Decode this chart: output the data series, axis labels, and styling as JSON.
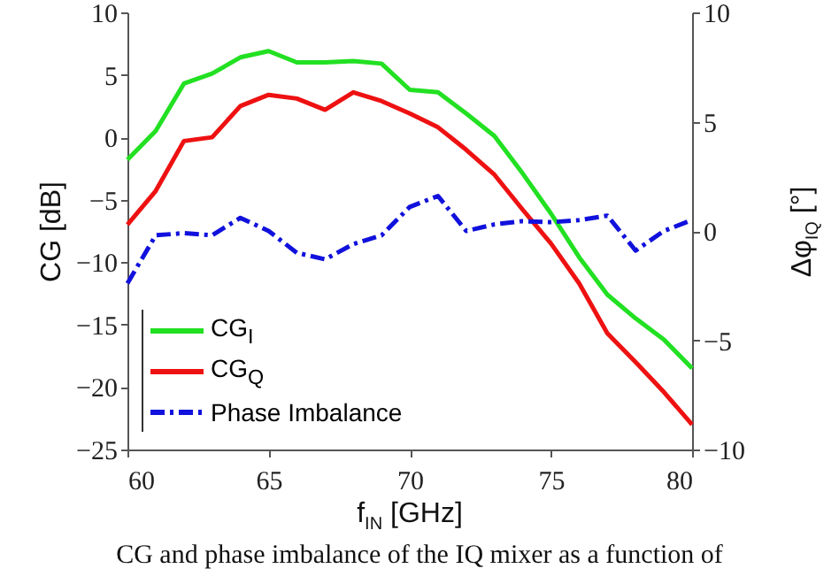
{
  "chart_data": {
    "type": "line",
    "xlabel": "f$_{IN}$ [GHz]",
    "ylabel": "CG [dB]",
    "y2label": "Δφ$_{IQ}$ [°]",
    "x": [
      60,
      61,
      62,
      63,
      64,
      65,
      66,
      67,
      68,
      69,
      70,
      71,
      72,
      73,
      74,
      75,
      76,
      77,
      78,
      79,
      80
    ],
    "series": [
      {
        "name": "CG$_{I}$",
        "color": "#22e022",
        "line_style": "solid",
        "values": [
          -1.8,
          0.5,
          4.3,
          5.1,
          6.4,
          6.9,
          6.0,
          6.0,
          6.1,
          5.9,
          3.8,
          3.6,
          1.9,
          0.1,
          -2.9,
          -6.1,
          -9.6,
          -12.6,
          -14.5,
          -16.2,
          -18.5
        ]
      },
      {
        "name": "CG$_{Q}$",
        "color": "#ee1111",
        "line_style": "solid",
        "values": [
          -7.0,
          -4.3,
          -0.3,
          0.0,
          2.5,
          3.4,
          3.1,
          2.2,
          3.6,
          2.9,
          1.9,
          0.8,
          -1.0,
          -3.0,
          -5.8,
          -8.5,
          -11.7,
          -15.7,
          -18.0,
          -20.4,
          -23.0
        ]
      },
      {
        "name": "Phase Imbalance",
        "color": "#1111dd",
        "line_style": "dashed",
        "axis": "y2",
        "values": [
          -2.4,
          -0.2,
          -0.1,
          -0.2,
          0.6,
          0.0,
          -1.0,
          -1.3,
          -0.6,
          -0.2,
          1.1,
          1.6,
          0.0,
          0.3,
          0.45,
          0.4,
          0.5,
          0.7,
          -0.9,
          0.0,
          0.5
        ]
      }
    ],
    "xlim": [
      60,
      80
    ],
    "xticks": [
      60,
      65,
      70,
      75,
      80
    ],
    "ylim": [
      -25,
      10
    ],
    "yticks": [
      -25,
      -20,
      -15,
      -10,
      -5,
      0,
      5,
      10
    ],
    "y2lim": [
      -10,
      10
    ],
    "y2ticks": [
      -10,
      -5,
      0,
      5,
      10
    ],
    "legend": "bottom left",
    "annotations": [
      "CG and phase imbalance of the IQ mixer as a function of"
    ]
  }
}
